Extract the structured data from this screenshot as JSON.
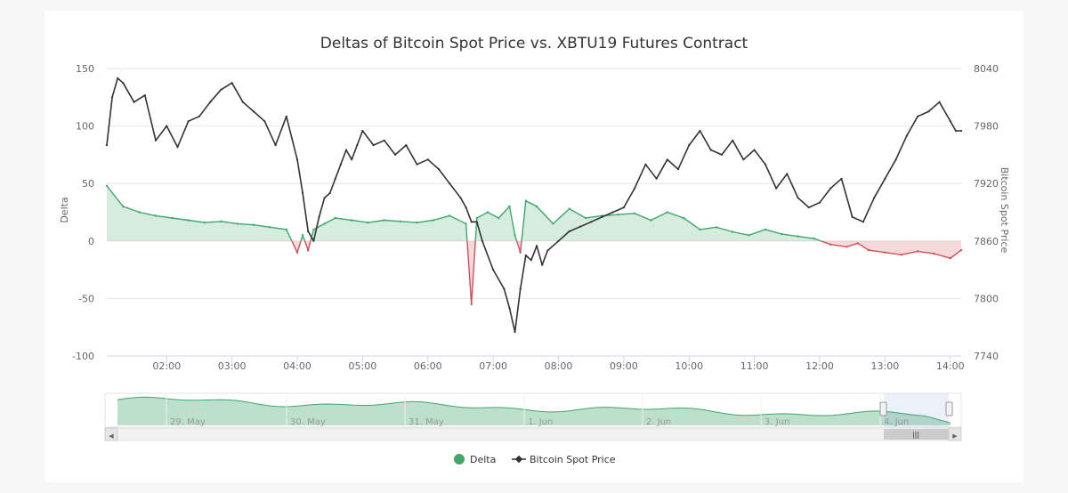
{
  "chart_data": {
    "type": "line",
    "title": "Deltas of Bitcoin Spot Price vs. XBTU19 Futures Contract",
    "x_ticks": [
      "02:00",
      "03:00",
      "04:00",
      "05:00",
      "06:00",
      "07:00",
      "08:00",
      "09:00",
      "10:00",
      "11:00",
      "12:00",
      "13:00",
      "14:00"
    ],
    "x_range": [
      "01:05",
      "14:10"
    ],
    "y_left": {
      "label": "Delta",
      "ticks": [
        "150",
        "100",
        "50",
        "0",
        "-50",
        "-100"
      ],
      "range": [
        -100,
        150
      ]
    },
    "y_right": {
      "label": "Bitcoin Spot Price",
      "ticks": [
        "8040",
        "7980",
        "7920",
        "7860",
        "7800",
        "7740"
      ],
      "range": [
        7740,
        8040
      ]
    },
    "series": [
      {
        "name": "Delta",
        "type": "area",
        "axis": "left",
        "color_positive": "#3fa76a",
        "color_negative": "#d0505a",
        "x": [
          "01:05",
          "01:20",
          "01:35",
          "01:50",
          "02:05",
          "02:20",
          "02:35",
          "02:50",
          "03:05",
          "03:20",
          "03:35",
          "03:50",
          "04:00",
          "04:05",
          "04:10",
          "04:15",
          "04:25",
          "04:35",
          "04:50",
          "05:05",
          "05:20",
          "05:35",
          "05:50",
          "06:05",
          "06:20",
          "06:35",
          "06:40",
          "06:45",
          "06:55",
          "07:05",
          "07:15",
          "07:20",
          "07:25",
          "07:30",
          "07:40",
          "07:55",
          "08:10",
          "08:25",
          "08:40",
          "08:55",
          "09:10",
          "09:25",
          "09:40",
          "09:55",
          "10:10",
          "10:25",
          "10:40",
          "10:55",
          "11:10",
          "11:25",
          "11:40",
          "11:55",
          "12:10",
          "12:25",
          "12:35",
          "12:45",
          "13:00",
          "13:15",
          "13:30",
          "13:45",
          "14:00",
          "14:10"
        ],
        "y": [
          48,
          30,
          25,
          22,
          20,
          18,
          16,
          17,
          15,
          14,
          12,
          10,
          -10,
          5,
          -8,
          10,
          15,
          20,
          18,
          16,
          18,
          17,
          16,
          18,
          22,
          15,
          -55,
          20,
          25,
          20,
          30,
          5,
          -10,
          35,
          30,
          15,
          28,
          20,
          22,
          23,
          24,
          18,
          25,
          20,
          10,
          12,
          8,
          5,
          10,
          6,
          4,
          2,
          -3,
          -5,
          -2,
          -8,
          -10,
          -12,
          -9,
          -11,
          -15,
          -8
        ]
      },
      {
        "name": "Bitcoin Spot Price",
        "type": "line",
        "axis": "right",
        "color": "#333333",
        "x": [
          "01:05",
          "01:10",
          "01:15",
          "01:20",
          "01:30",
          "01:40",
          "01:50",
          "02:00",
          "02:10",
          "02:20",
          "02:30",
          "02:40",
          "02:50",
          "03:00",
          "03:10",
          "03:20",
          "03:30",
          "03:40",
          "03:50",
          "04:00",
          "04:05",
          "04:10",
          "04:15",
          "04:20",
          "04:25",
          "04:30",
          "04:35",
          "04:40",
          "04:45",
          "04:50",
          "04:55",
          "05:00",
          "05:10",
          "05:20",
          "05:30",
          "05:40",
          "05:50",
          "06:00",
          "06:10",
          "06:20",
          "06:30",
          "06:35",
          "06:40",
          "06:45",
          "06:50",
          "07:00",
          "07:10",
          "07:15",
          "07:20",
          "07:25",
          "07:30",
          "07:35",
          "07:40",
          "07:45",
          "07:50",
          "08:00",
          "08:10",
          "08:20",
          "08:30",
          "08:40",
          "08:50",
          "09:00",
          "09:10",
          "09:20",
          "09:30",
          "09:40",
          "09:50",
          "10:00",
          "10:10",
          "10:20",
          "10:30",
          "10:40",
          "10:50",
          "11:00",
          "11:10",
          "11:20",
          "11:30",
          "11:40",
          "11:50",
          "12:00",
          "12:10",
          "12:20",
          "12:30",
          "12:40",
          "12:50",
          "13:00",
          "13:10",
          "13:20",
          "13:30",
          "13:40",
          "13:50",
          "14:00",
          "14:05",
          "14:10"
        ],
        "y": [
          7960,
          8010,
          8030,
          8025,
          8005,
          8012,
          7965,
          7980,
          7958,
          7985,
          7990,
          8005,
          8018,
          8025,
          8005,
          7995,
          7985,
          7960,
          7990,
          7945,
          7910,
          7870,
          7860,
          7885,
          7905,
          7910,
          7925,
          7940,
          7955,
          7945,
          7960,
          7975,
          7960,
          7965,
          7950,
          7960,
          7940,
          7945,
          7935,
          7920,
          7905,
          7895,
          7880,
          7880,
          7860,
          7830,
          7810,
          7790,
          7765,
          7810,
          7845,
          7840,
          7855,
          7835,
          7850,
          7860,
          7870,
          7875,
          7880,
          7885,
          7890,
          7895,
          7915,
          7940,
          7925,
          7945,
          7935,
          7960,
          7975,
          7955,
          7950,
          7965,
          7945,
          7955,
          7940,
          7915,
          7930,
          7905,
          7895,
          7900,
          7915,
          7925,
          7885,
          7880,
          7905,
          7925,
          7945,
          7970,
          7990,
          7995,
          8005,
          7985,
          7975,
          7975
        ]
      }
    ],
    "navigator": {
      "labels": [
        "29. May",
        "30. May",
        "31. May",
        "1. Jun",
        "2. Jun",
        "3. Jun",
        "4. Jun"
      ]
    },
    "legend": {
      "placement": "bottom-center",
      "items": [
        "Delta",
        "Bitcoin Spot Price"
      ]
    },
    "grid": true
  },
  "scrollbar": {
    "grip_glyph": "|||",
    "left_arrow": "◀",
    "right_arrow": "▶"
  }
}
